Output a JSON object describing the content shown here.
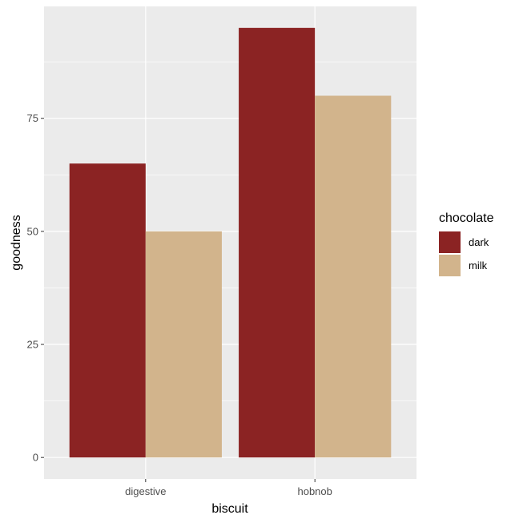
{
  "chart_data": {
    "type": "bar",
    "title": "",
    "xlabel": "biscuit",
    "ylabel": "goodness",
    "categories": [
      "digestive",
      "hobnob"
    ],
    "series": [
      {
        "name": "dark",
        "values": [
          65,
          95
        ],
        "color": "#8B2323"
      },
      {
        "name": "milk",
        "values": [
          50,
          80
        ],
        "color": "#D2B48C"
      }
    ],
    "ylim": [
      -4.75,
      99.75
    ],
    "yticks": [
      0,
      25,
      50,
      75
    ],
    "ytick_labels": [
      "0",
      "25",
      "50",
      "75"
    ],
    "grid": true,
    "legend": {
      "title": "chocolate",
      "placement": "right",
      "entries": [
        "dark",
        "milk"
      ]
    }
  }
}
